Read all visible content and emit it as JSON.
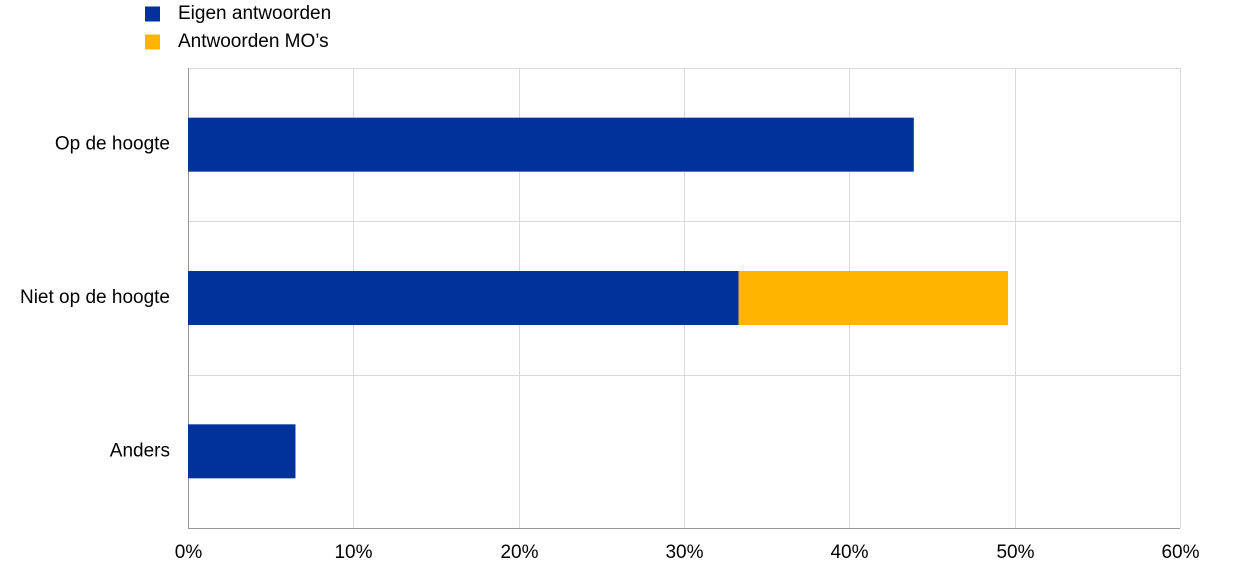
{
  "chart_data": {
    "type": "stacked-bar-horizontal",
    "categories": [
      "Op de hoogte",
      "Niet op de hoogte",
      "Anders"
    ],
    "series": [
      {
        "name": "Eigen antwoorden",
        "color": "#003299",
        "values": [
          43.9,
          33.3,
          6.5
        ]
      },
      {
        "name": "Antwoorden MO’s",
        "color": "#ffb400",
        "values": [
          0,
          16.3,
          0
        ]
      }
    ],
    "xlim": [
      0,
      60
    ],
    "xticks": [
      {
        "value": 0,
        "label": "0%"
      },
      {
        "value": 10,
        "label": "10%"
      },
      {
        "value": 20,
        "label": "20%"
      },
      {
        "value": 30,
        "label": "30%"
      },
      {
        "value": 40,
        "label": "40%"
      },
      {
        "value": 50,
        "label": "50%"
      },
      {
        "value": 60,
        "label": "60%"
      }
    ],
    "grid": true,
    "legend": "top-left"
  }
}
